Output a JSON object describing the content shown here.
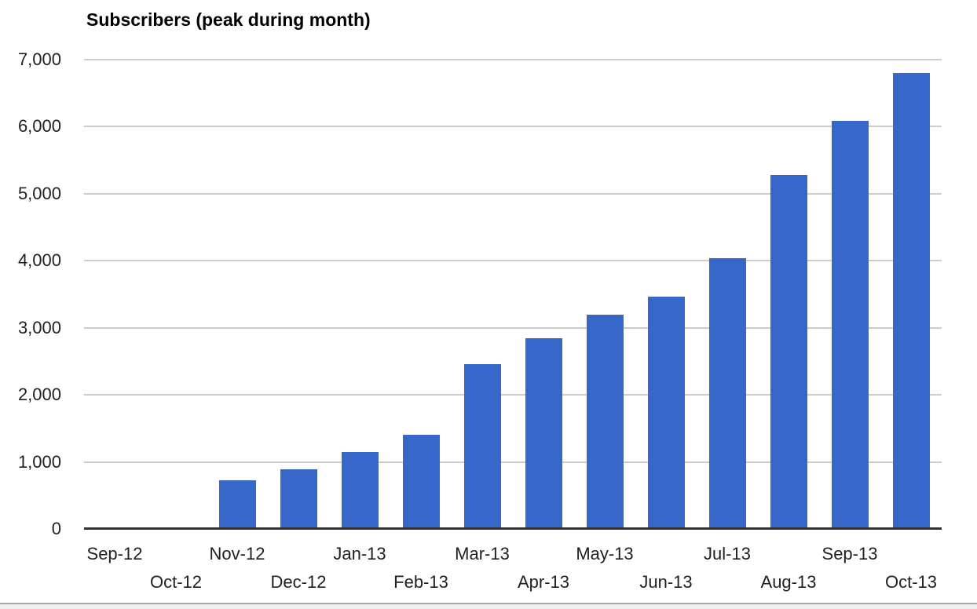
{
  "chart_data": {
    "type": "bar",
    "title": "Subscribers (peak during month)",
    "categories": [
      "Sep-12",
      "Oct-12",
      "Nov-12",
      "Dec-12",
      "Jan-13",
      "Feb-13",
      "Mar-13",
      "Apr-13",
      "May-13",
      "Jun-13",
      "Jul-13",
      "Aug-13",
      "Sep-13",
      "Oct-13"
    ],
    "values": [
      0,
      0,
      730,
      890,
      1150,
      1400,
      2460,
      2840,
      3190,
      3470,
      4040,
      5280,
      6090,
      6800
    ],
    "xlabel": "",
    "ylabel": "",
    "ylim": [
      0,
      7000
    ],
    "ytick_interval": 1000,
    "ytick_labels": [
      "0",
      "1,000",
      "2,000",
      "3,000",
      "4,000",
      "5,000",
      "6,000",
      "7,000"
    ],
    "grid": true,
    "legend_position": "none",
    "x_label_layout": "staggered-two-rows",
    "colors": {
      "bar": "#3767c9",
      "gridline": "#cccccc",
      "axis": "#333333",
      "tick_label": "#1f1f1f",
      "title": "#000000",
      "window_edge_line": "#a9a9a9",
      "window_edge_fill": "#f0f0f0"
    }
  }
}
